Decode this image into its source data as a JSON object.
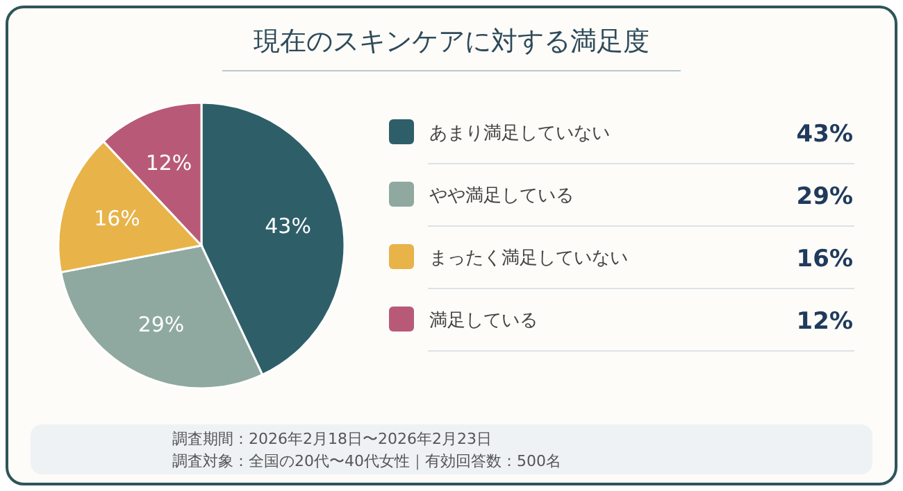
{
  "chart_data": {
    "type": "pie",
    "title": "現在のスキンケアに対する満足度",
    "categories": [
      "あまり満足していない",
      "やや満足している",
      "まったく満足していない",
      "満足している"
    ],
    "values": [
      43,
      29,
      16,
      12
    ],
    "colors": [
      "#2e5f69",
      "#8fa9a1",
      "#e8b349",
      "#b85a77"
    ],
    "value_labels": [
      "43%",
      "29%",
      "16%",
      "12%"
    ],
    "legend": "right",
    "annotations": [
      "調査期間：2026年2月18日〜2026年2月23日",
      "調査対象：全国の20代〜40代女性｜有効回答数：500名"
    ]
  }
}
